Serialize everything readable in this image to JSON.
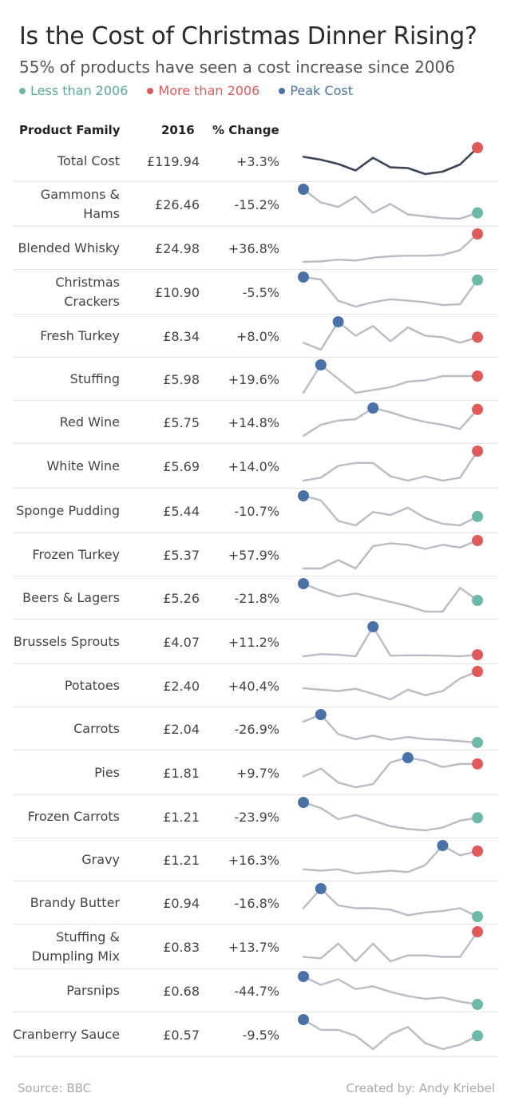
{
  "title": "Is the Cost of Christmas Dinner Rising?",
  "subtitle": "55% of products have seen a cost increase since 2006",
  "legend": {
    "less": "Less than 2006",
    "more": "More than 2006",
    "peak": "Peak Cost"
  },
  "colors": {
    "less": "#6cb8a9",
    "more": "#e05a5a",
    "peak": "#4a72a8",
    "line": "#b8bcc6",
    "total_line": "#3a4557"
  },
  "headers": {
    "product": "Product Family",
    "year": "2016",
    "change": "% Change"
  },
  "footer": {
    "source": "Source: BBC",
    "credit": "Created by: Andy Kriebel"
  },
  "chart_data": {
    "type": "line",
    "x": [
      2006,
      2007,
      2008,
      2009,
      2010,
      2011,
      2012,
      2013,
      2014,
      2015,
      2016
    ],
    "rows": [
      {
        "name": "Total Cost",
        "value": "£119.94",
        "change": "+3.3%",
        "status": "more",
        "series": [
          0.62,
          0.5,
          0.32,
          0.05,
          0.58,
          0.18,
          0.15,
          -0.1,
          0.0,
          0.3,
          1.0
        ]
      },
      {
        "name": "Gammons & Hams",
        "value": "£26.46",
        "change": "-15.2%",
        "status": "less",
        "peak_index": 0,
        "series": [
          1.0,
          0.55,
          0.4,
          0.75,
          0.2,
          0.5,
          0.15,
          0.08,
          0.02,
          0.0,
          0.2
        ]
      },
      {
        "name": "Blended Whisky",
        "value": "£24.98",
        "change": "+36.8%",
        "status": "more",
        "series": [
          0.0,
          0.02,
          0.08,
          0.05,
          0.15,
          0.2,
          0.22,
          0.22,
          0.25,
          0.42,
          1.0
        ]
      },
      {
        "name": "Christmas Crackers",
        "value": "£10.90",
        "change": "-5.5%",
        "status": "less",
        "peak_index": 0,
        "series": [
          1.0,
          0.92,
          0.2,
          0.0,
          0.15,
          0.25,
          0.2,
          0.15,
          0.05,
          0.08,
          0.9
        ]
      },
      {
        "name": "Fresh Turkey",
        "value": "£8.34",
        "change": "+8.0%",
        "status": "more",
        "peak_index": 2,
        "series": [
          0.25,
          0.0,
          1.0,
          0.5,
          0.85,
          0.3,
          0.8,
          0.5,
          0.45,
          0.25,
          0.45
        ]
      },
      {
        "name": "Stuffing",
        "value": "£5.98",
        "change": "+19.6%",
        "status": "more",
        "peak_index": 1,
        "series": [
          0.0,
          1.0,
          0.5,
          0.0,
          0.1,
          0.2,
          0.4,
          0.45,
          0.6,
          0.6,
          0.6
        ]
      },
      {
        "name": "Red Wine",
        "value": "£5.75",
        "change": "+14.8%",
        "status": "more",
        "peak_index": 4,
        "series": [
          0.0,
          0.4,
          0.55,
          0.6,
          1.0,
          0.85,
          0.65,
          0.5,
          0.4,
          0.25,
          0.95
        ]
      },
      {
        "name": "White Wine",
        "value": "£5.69",
        "change": "+14.0%",
        "status": "more",
        "series": [
          0.0,
          0.1,
          0.5,
          0.6,
          0.6,
          0.15,
          0.0,
          0.15,
          0.0,
          0.1,
          1.0
        ]
      },
      {
        "name": "Sponge Pudding",
        "value": "£5.44",
        "change": "-10.7%",
        "status": "less",
        "peak_index": 0,
        "series": [
          1.0,
          0.85,
          0.15,
          0.0,
          0.45,
          0.35,
          0.6,
          0.25,
          0.05,
          0.0,
          0.3
        ]
      },
      {
        "name": "Frozen Turkey",
        "value": "£5.37",
        "change": "+57.9%",
        "status": "more",
        "series": [
          0.0,
          0.0,
          0.3,
          0.0,
          0.8,
          0.9,
          0.85,
          0.7,
          0.85,
          0.75,
          1.0
        ]
      },
      {
        "name": "Beers & Lagers",
        "value": "£5.26",
        "change": "-21.8%",
        "status": "less",
        "peak_index": 0,
        "series": [
          1.0,
          0.75,
          0.55,
          0.65,
          0.5,
          0.35,
          0.2,
          0.0,
          0.0,
          0.85,
          0.4
        ]
      },
      {
        "name": "Brussels Sprouts",
        "value": "£4.07",
        "change": "+11.2%",
        "status": "more",
        "peak_index": 4,
        "series": [
          0.05,
          0.12,
          0.1,
          0.05,
          1.0,
          0.07,
          0.08,
          0.08,
          0.07,
          0.05,
          0.1
        ]
      },
      {
        "name": "Potatoes",
        "value": "£2.40",
        "change": "+40.4%",
        "status": "more",
        "series": [
          0.4,
          0.35,
          0.3,
          0.38,
          0.2,
          0.0,
          0.35,
          0.15,
          0.3,
          0.75,
          1.0
        ]
      },
      {
        "name": "Carrots",
        "value": "£2.04",
        "change": "-26.9%",
        "status": "less",
        "peak_index": 1,
        "series": [
          0.75,
          1.0,
          0.3,
          0.12,
          0.25,
          0.1,
          0.2,
          0.12,
          0.1,
          0.05,
          0.0
        ]
      },
      {
        "name": "Pies",
        "value": "£1.81",
        "change": "+9.7%",
        "status": "more",
        "peak_index": 6,
        "series": [
          0.35,
          0.6,
          0.15,
          0.0,
          0.1,
          0.8,
          0.95,
          0.85,
          0.65,
          0.75,
          0.75
        ]
      },
      {
        "name": "Frozen Carrots",
        "value": "£1.21",
        "change": "-23.9%",
        "status": "less",
        "peak_index": 0,
        "series": [
          1.0,
          0.8,
          0.4,
          0.55,
          0.35,
          0.15,
          0.05,
          0.0,
          0.1,
          0.35,
          0.45
        ]
      },
      {
        "name": "Gravy",
        "value": "£1.21",
        "change": "+16.3%",
        "status": "more",
        "peak_index": 8,
        "series": [
          0.15,
          0.1,
          0.15,
          0.0,
          0.05,
          0.1,
          0.05,
          0.3,
          1.0,
          0.65,
          0.8
        ]
      },
      {
        "name": "Brandy Butter",
        "value": "£0.94",
        "change": "-16.8%",
        "status": "less",
        "peak_index": 1,
        "series": [
          0.3,
          1.0,
          0.4,
          0.3,
          0.3,
          0.25,
          0.05,
          0.15,
          0.2,
          0.3,
          0.0
        ]
      },
      {
        "name": "Stuffing & Dumpling Mix",
        "value": "£0.83",
        "change": "+13.7%",
        "status": "more",
        "series": [
          0.15,
          0.1,
          0.6,
          0.0,
          0.6,
          0.0,
          0.2,
          0.2,
          0.15,
          0.15,
          1.0
        ]
      },
      {
        "name": "Parsnips",
        "value": "£0.68",
        "change": "-44.7%",
        "status": "less",
        "peak_index": 0,
        "series": [
          1.0,
          0.7,
          0.9,
          0.55,
          0.65,
          0.45,
          0.3,
          0.2,
          0.25,
          0.1,
          0.0
        ]
      },
      {
        "name": "Cranberry Sauce",
        "value": "£0.57",
        "change": "-9.5%",
        "status": "less",
        "peak_index": 0,
        "series": [
          1.0,
          0.65,
          0.65,
          0.45,
          0.0,
          0.5,
          0.75,
          0.2,
          0.0,
          0.15,
          0.45
        ]
      }
    ]
  }
}
